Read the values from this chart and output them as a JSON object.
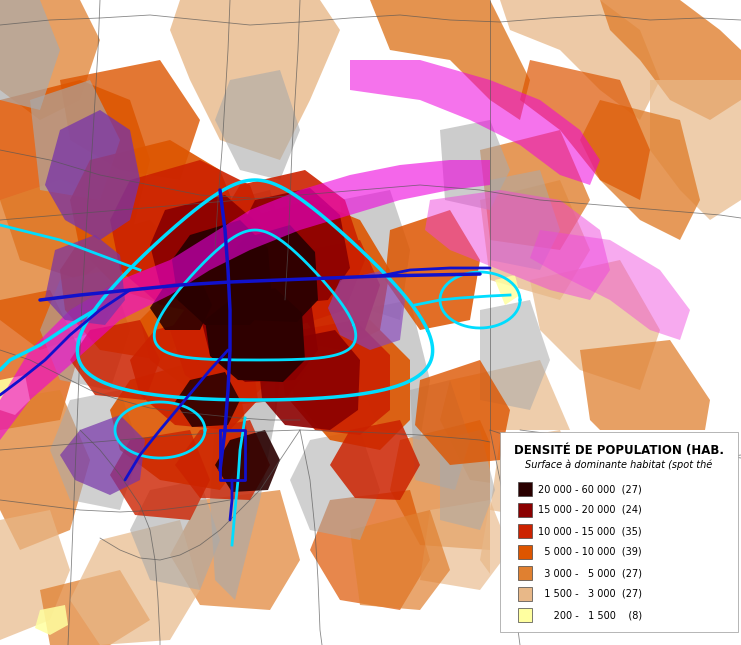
{
  "legend_title_line1": "DENSITÉ DE POPULATION (HAB.",
  "legend_title_line2": "Surface à dominante habitat (spot thé",
  "legend_items": [
    {
      "label": "20 000 - 60 000  (27)",
      "color": "#2a0000"
    },
    {
      "label": "15 000 - 20 000  (24)",
      "color": "#8b0000"
    },
    {
      "label": "10 000 - 15 000  (35)",
      "color": "#cc2200"
    },
    {
      "label": "  5 000 - 10 000  (39)",
      "color": "#dd5500"
    },
    {
      "label": "  3 000 -   5 000  (27)",
      "color": "#e08030"
    },
    {
      "label": "  1 500 -   3 000  (27)",
      "color": "#e8b888"
    },
    {
      "label": "     200 -   1 500    (8)",
      "color": "#ffffa0"
    }
  ],
  "colors": {
    "very_dark_red": "#2a0000",
    "dark_red": "#8b0000",
    "red": "#cc2200",
    "med_orange": "#dd5500",
    "light_orange": "#e08030",
    "vlight_orange": "#e8b888",
    "yellow": "#ffffa0",
    "gray": "#aaaaaa",
    "light_gray": "#cccccc",
    "magenta": "#ee00dd",
    "purple": "#7733aa",
    "cyan": "#00ddff",
    "blue": "#1111cc",
    "white": "#ffffff",
    "boundary": "#555555"
  },
  "figsize": [
    7.41,
    6.45
  ],
  "dpi": 100
}
